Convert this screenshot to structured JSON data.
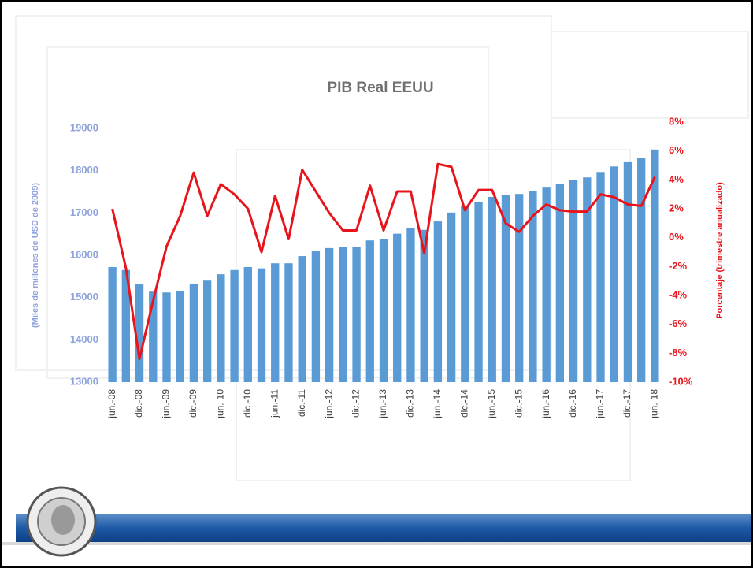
{
  "chart_data": {
    "type": "bar-line",
    "title": "PIB Real EEUU",
    "y_label": "(Miles de millones de USD de 2009)",
    "y2_label": "Porcentaje (trimestre anualizado)",
    "categories": [
      "jun.-08",
      null,
      "dic.-08",
      null,
      "jun.-09",
      null,
      "dic.-09",
      null,
      "jun.-10",
      null,
      "dic.-10",
      null,
      "jun.-11",
      null,
      "dic.-11",
      null,
      "jun.-12",
      null,
      "dic.-12",
      null,
      "jun.-13",
      null,
      "dic.-13",
      null,
      "jun.-14",
      null,
      "dic.-14",
      null,
      "jun.-15",
      null,
      "dic.-15",
      null,
      "jun.-16",
      null,
      "dic.-16",
      null,
      "jun.-17",
      null,
      "dic.-17",
      null,
      "jun.-18"
    ],
    "series": [
      {
        "type": "bar",
        "color": "#5b9bd5",
        "values": [
          15720,
          15650,
          15310,
          15140,
          15120,
          15160,
          15330,
          15400,
          15550,
          15650,
          15720,
          15690,
          15810,
          15810,
          15980,
          16110,
          16170,
          16190,
          16200,
          16350,
          16380,
          16510,
          16640,
          16600,
          16800,
          17010,
          17160,
          17250,
          17380,
          17430,
          17450,
          17510,
          17600,
          17680,
          17770,
          17840,
          17970,
          18100,
          18200,
          18310,
          18500
        ]
      },
      {
        "type": "line",
        "color": "#e8141b",
        "axis": "y2",
        "values": [
          2.0,
          -2.1,
          -8.4,
          -4.4,
          -0.6,
          1.5,
          4.5,
          1.5,
          3.7,
          3.0,
          2.0,
          -1.0,
          2.9,
          -0.1,
          4.7,
          3.2,
          1.7,
          0.5,
          0.5,
          3.6,
          0.5,
          3.2,
          3.2,
          -1.1,
          5.1,
          4.9,
          1.9,
          3.3,
          3.3,
          1.0,
          0.4,
          1.5,
          2.3,
          1.9,
          1.8,
          1.8,
          3.0,
          2.8,
          2.3,
          2.2,
          4.2
        ]
      }
    ],
    "ylim": [
      13000,
      19000
    ],
    "yticks": [
      13000,
      14000,
      15000,
      16000,
      17000,
      18000,
      19000
    ],
    "y2lim": [
      -10,
      8
    ],
    "y2ticks": [
      {
        "value": -10,
        "label": "-10%"
      },
      {
        "value": -8,
        "label": "-8%"
      },
      {
        "value": -6,
        "label": "-6%"
      },
      {
        "value": -4,
        "label": "-4%"
      },
      {
        "value": -2,
        "label": "-2%"
      },
      {
        "value": 0,
        "label": "0%"
      },
      {
        "value": 2,
        "label": "2%"
      },
      {
        "value": 4,
        "label": "4%"
      },
      {
        "value": 6,
        "label": "6%"
      },
      {
        "value": 8,
        "label": "8%"
      }
    ],
    "grid": false
  }
}
